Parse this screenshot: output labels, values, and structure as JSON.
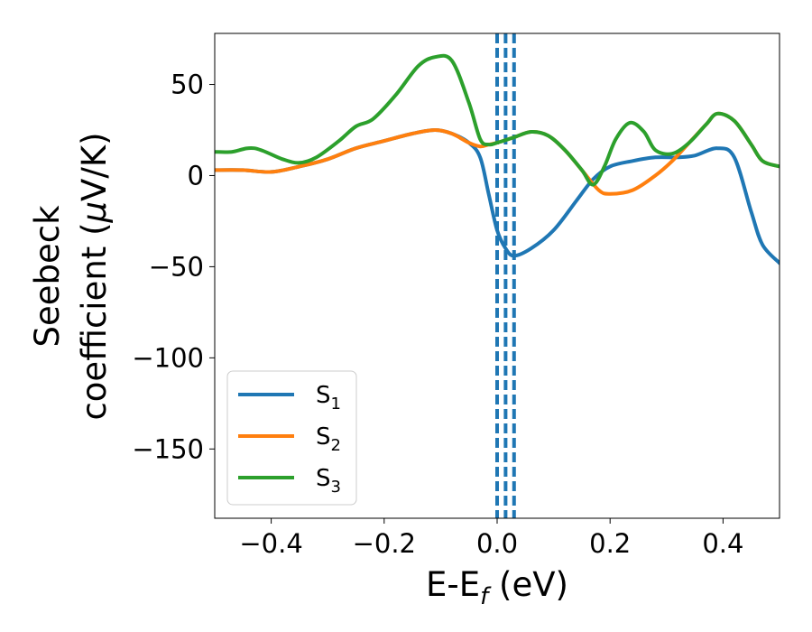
{
  "chart_data": {
    "type": "line",
    "title": "",
    "xlabel": "E-E_f (eV)",
    "xlabel_parts": {
      "main": "E-E",
      "sub": "f",
      "rest": " (eV)"
    },
    "ylabel_line1": "Seebeck",
    "ylabel_line2_prefix": "coefficient  (",
    "ylabel_mu": "μ",
    "ylabel_line2_suffix": "V/K)",
    "xlim": [
      -0.5,
      0.5
    ],
    "ylim": [
      -188,
      78
    ],
    "xticks": [
      -0.4,
      -0.2,
      0.0,
      0.2,
      0.4
    ],
    "xtick_labels": [
      "−0.4",
      "−0.2",
      "0.0",
      "0.2",
      "0.4"
    ],
    "yticks": [
      50,
      0,
      -50,
      -100,
      -150
    ],
    "ytick_labels": [
      "50",
      "0",
      "−50",
      "−100",
      "−150"
    ],
    "grid": false,
    "legend_position": "bottom-left",
    "vlines": [
      {
        "x": 0.0,
        "color": "#000000",
        "style": "dashed"
      },
      {
        "x": 0.0,
        "color": "#1f77b4",
        "style": "dashed"
      },
      {
        "x": 0.015,
        "color": "#1f77b4",
        "style": "dashed"
      },
      {
        "x": 0.03,
        "color": "#1f77b4",
        "style": "dashed"
      }
    ],
    "series": [
      {
        "name": "S_1",
        "label_main": "S",
        "label_sub": "1",
        "color": "#1f77b4",
        "points": [
          [
            -0.5,
            3
          ],
          [
            -0.45,
            3
          ],
          [
            -0.4,
            2
          ],
          [
            -0.35,
            5
          ],
          [
            -0.3,
            9
          ],
          [
            -0.25,
            15
          ],
          [
            -0.2,
            19
          ],
          [
            -0.15,
            23
          ],
          [
            -0.11,
            25
          ],
          [
            -0.08,
            23
          ],
          [
            -0.05,
            18
          ],
          [
            -0.03,
            10
          ],
          [
            -0.015,
            -10
          ],
          [
            0.0,
            -30
          ],
          [
            0.015,
            -40
          ],
          [
            0.03,
            -44
          ],
          [
            0.06,
            -40
          ],
          [
            0.1,
            -30
          ],
          [
            0.14,
            -14
          ],
          [
            0.17,
            -2
          ],
          [
            0.2,
            5
          ],
          [
            0.24,
            8
          ],
          [
            0.28,
            10
          ],
          [
            0.32,
            10
          ],
          [
            0.35,
            11
          ],
          [
            0.39,
            15
          ],
          [
            0.42,
            10
          ],
          [
            0.45,
            -20
          ],
          [
            0.47,
            -38
          ],
          [
            0.5,
            -48
          ]
        ]
      },
      {
        "name": "S_2",
        "label_main": "S",
        "label_sub": "2",
        "color": "#ff7f0e",
        "points": [
          [
            -0.5,
            3
          ],
          [
            -0.45,
            3
          ],
          [
            -0.4,
            2
          ],
          [
            -0.35,
            5
          ],
          [
            -0.3,
            9
          ],
          [
            -0.25,
            15
          ],
          [
            -0.2,
            19
          ],
          [
            -0.15,
            23
          ],
          [
            -0.11,
            25
          ],
          [
            -0.08,
            23
          ],
          [
            -0.05,
            18
          ],
          [
            -0.03,
            16
          ],
          [
            -0.015,
            17
          ],
          [
            0.0,
            18
          ],
          [
            0.03,
            21
          ],
          [
            0.06,
            24
          ],
          [
            0.09,
            22
          ],
          [
            0.12,
            14
          ],
          [
            0.15,
            3
          ],
          [
            0.18,
            -8
          ],
          [
            0.2,
            -10
          ],
          [
            0.24,
            -8
          ],
          [
            0.28,
            0
          ],
          [
            0.31,
            8
          ],
          [
            0.34,
            18
          ],
          [
            0.37,
            28
          ],
          [
            0.39,
            34
          ],
          [
            0.42,
            30
          ],
          [
            0.45,
            17
          ],
          [
            0.47,
            8
          ],
          [
            0.5,
            5
          ]
        ]
      },
      {
        "name": "S_3",
        "label_main": "S",
        "label_sub": "3",
        "color": "#2ca02c",
        "points": [
          [
            -0.5,
            13
          ],
          [
            -0.47,
            13
          ],
          [
            -0.43,
            15
          ],
          [
            -0.38,
            9
          ],
          [
            -0.35,
            7
          ],
          [
            -0.32,
            10
          ],
          [
            -0.28,
            19
          ],
          [
            -0.25,
            27
          ],
          [
            -0.22,
            31
          ],
          [
            -0.18,
            44
          ],
          [
            -0.14,
            60
          ],
          [
            -0.11,
            65
          ],
          [
            -0.08,
            63
          ],
          [
            -0.05,
            40
          ],
          [
            -0.03,
            20
          ],
          [
            -0.015,
            17
          ],
          [
            0.0,
            18
          ],
          [
            0.03,
            21
          ],
          [
            0.06,
            24
          ],
          [
            0.09,
            22
          ],
          [
            0.12,
            14
          ],
          [
            0.15,
            3
          ],
          [
            0.17,
            -5
          ],
          [
            0.19,
            5
          ],
          [
            0.21,
            20
          ],
          [
            0.235,
            29
          ],
          [
            0.26,
            24
          ],
          [
            0.28,
            14
          ],
          [
            0.31,
            12
          ],
          [
            0.34,
            18
          ],
          [
            0.37,
            28
          ],
          [
            0.39,
            34
          ],
          [
            0.42,
            30
          ],
          [
            0.45,
            17
          ],
          [
            0.47,
            8
          ],
          [
            0.5,
            5
          ]
        ]
      }
    ]
  }
}
